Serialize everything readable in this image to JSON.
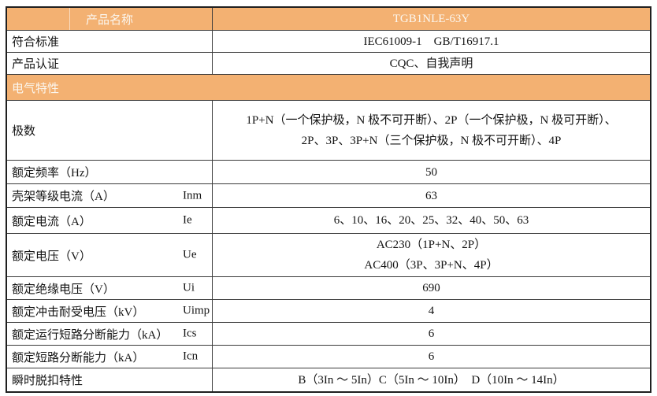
{
  "table": {
    "header": {
      "label": "产品名称",
      "value": "TGB1NLE-63Y"
    },
    "info_rows": [
      {
        "label": "符合标准",
        "value": "IEC61009-1　GB/T16917.1"
      },
      {
        "label": "产品认证",
        "value": "CQC、自我声明"
      }
    ],
    "section_header": "电气特性",
    "spec_rows": [
      {
        "label": "极数",
        "symbol": "",
        "value_lines": [
          "1P+N（一个保护极，N 极不可开断）、2P（一个保护极，N 极可开断）、",
          "2P、3P、3P+N（三个保护极，N 极不可开断）、4P"
        ]
      },
      {
        "label": "额定频率（Hz）",
        "symbol": "",
        "value_lines": [
          "50"
        ]
      },
      {
        "label": "壳架等级电流（A）",
        "symbol": "Inm",
        "value_lines": [
          "63"
        ]
      },
      {
        "label": "额定电流（A）",
        "symbol": "Ie",
        "value_lines": [
          "6、10、16、20、25、32、40、50、63"
        ]
      },
      {
        "label": "额定电压（V）",
        "symbol": "Ue",
        "value_lines": [
          "AC230（1P+N、2P）",
          "AC400（3P、3P+N、4P）"
        ]
      },
      {
        "label": "额定绝缘电压（V）",
        "symbol": "Ui",
        "value_lines": [
          "690"
        ]
      },
      {
        "label": "额定冲击耐受电压（kV）",
        "symbol": "Uimp",
        "value_lines": [
          "4"
        ]
      },
      {
        "label": "额定运行短路分断能力（kA）",
        "symbol": "Ics",
        "value_lines": [
          "6"
        ]
      },
      {
        "label": "额定短路分断能力（kA）",
        "symbol": "Icn",
        "value_lines": [
          "6"
        ]
      },
      {
        "label": "瞬时脱扣特性",
        "symbol": "",
        "value_lines": [
          "B（3In ～ 5In）C（5In ～ 10In）　D（10In ～ 14In）"
        ]
      }
    ],
    "colors": {
      "header_bg": "#f3b172",
      "header_text": "#fbf6ee",
      "grid_border": "#3b3b3b",
      "outer_border": "#1f1f1f",
      "body_text": "#141414"
    }
  }
}
